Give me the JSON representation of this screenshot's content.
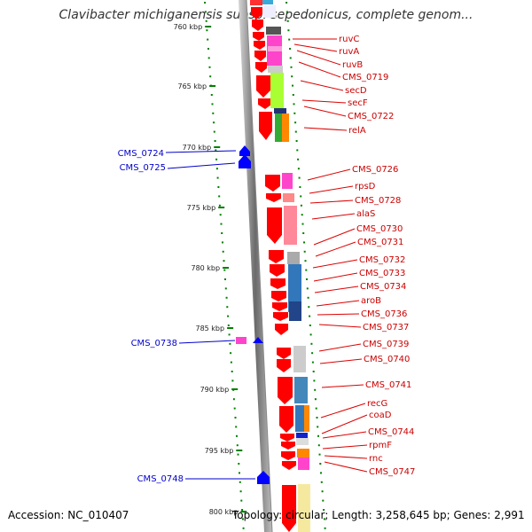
{
  "title": "Clavibacter michiganensis subsp. sepedonicus, complete genom...",
  "footer": {
    "accession": "Accession: NC_010407",
    "topology": "Topology: circular; Length: 3,258,645 bp; Genes: 2,991"
  },
  "ticks": [
    "760 kbp",
    "765 kbp",
    "770 kbp",
    "775 kbp",
    "780 kbp",
    "785 kbp",
    "790 kbp",
    "795 kbp",
    "800 kbp"
  ],
  "right_labels": [
    "ruvC",
    "ruvA",
    "ruvB",
    "CMS_0719",
    "secD",
    "secF",
    "CMS_0722",
    "relA",
    "CMS_0726",
    "rpsD",
    "CMS_0728",
    "alaS",
    "CMS_0730",
    "CMS_0731",
    "CMS_0732",
    "CMS_0733",
    "CMS_0734",
    "aroB",
    "CMS_0736",
    "CMS_0737",
    "CMS_0739",
    "CMS_0740",
    "CMS_0741",
    "recG",
    "coaD",
    "CMS_0744",
    "rpmF",
    "rnc",
    "CMS_0747"
  ],
  "left_labels": [
    "CMS_0724",
    "CMS_0725",
    "CMS_0738",
    "CMS_0748"
  ],
  "colors": {
    "forward_gene": "#ff0000",
    "reverse_gene": "#0000ff",
    "right_label": "#cc0000",
    "left_label": "#0000cc",
    "tick_dot": "#008000"
  }
}
